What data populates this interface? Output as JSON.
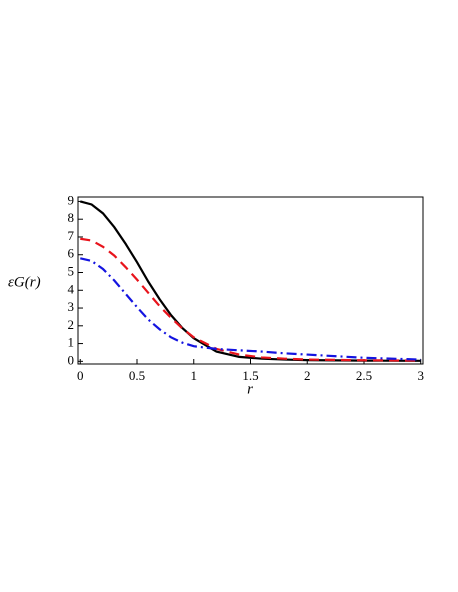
{
  "chart_data": {
    "type": "line",
    "x_label": "r",
    "y_label": "εG(r)",
    "x": [
      0,
      0.1,
      0.2,
      0.3,
      0.4,
      0.5,
      0.6,
      0.7,
      0.8,
      0.9,
      1,
      1.2,
      1.4,
      1.6,
      1.8,
      2,
      2.5,
      3
    ],
    "series": [
      {
        "color": "#000000",
        "style": "solid",
        "values": [
          9,
          8.83,
          8.33,
          7.55,
          6.61,
          5.58,
          4.48,
          3.49,
          2.6,
          1.87,
          1.3,
          0.55,
          0.25,
          0.15,
          0.1,
          0.07,
          0.04,
          0.03
        ]
      },
      {
        "color": "#e8141c",
        "style": "dash",
        "values": [
          6.9,
          6.8,
          6.45,
          5.95,
          5.3,
          4.6,
          3.85,
          3.1,
          2.45,
          1.85,
          1.35,
          0.7,
          0.38,
          0.22,
          0.15,
          0.1,
          0.06,
          0.04
        ]
      },
      {
        "color": "#1414e0",
        "style": "dashdot",
        "values": [
          5.8,
          5.65,
          5.2,
          4.55,
          3.8,
          3.05,
          2.35,
          1.8,
          1.35,
          1.05,
          0.85,
          0.7,
          0.62,
          0.55,
          0.45,
          0.38,
          0.2,
          0.1
        ]
      }
    ],
    "xlim": [
      -0.02,
      3.02
    ],
    "ylim": [
      -0.15,
      9.25
    ],
    "xticks": [
      0,
      0.5,
      1,
      1.5,
      2,
      2.5,
      3
    ],
    "yticks": [
      0,
      1,
      2,
      3,
      4,
      5,
      6,
      7,
      8,
      9
    ]
  }
}
